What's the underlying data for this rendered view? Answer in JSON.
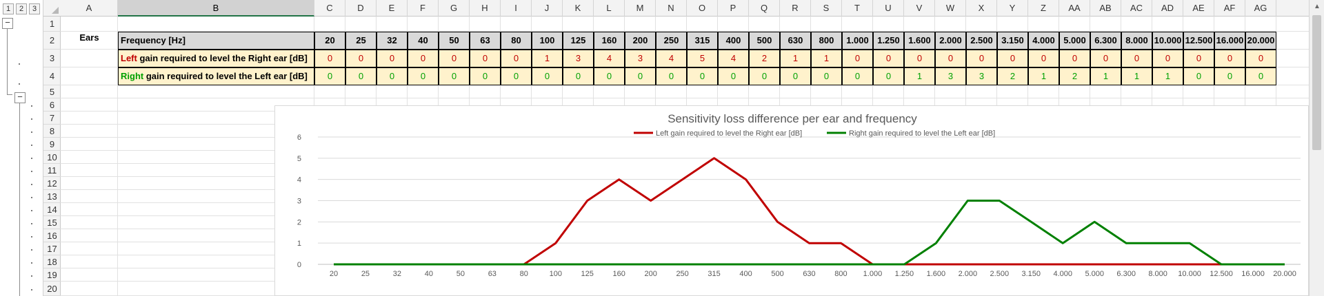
{
  "sheet": {
    "outline_levels": [
      "1",
      "2",
      "3"
    ],
    "collapse_symbol": "−",
    "column_letters": [
      "A",
      "B",
      "C",
      "D",
      "E",
      "F",
      "G",
      "H",
      "I",
      "J",
      "K",
      "L",
      "M",
      "N",
      "O",
      "P",
      "Q",
      "R",
      "S",
      "T",
      "U",
      "V",
      "W",
      "X",
      "Y",
      "Z",
      "AA",
      "AB",
      "AC",
      "AD",
      "AE",
      "AF",
      "AG"
    ],
    "selected_column": "B",
    "row_numbers": [
      "1",
      "2",
      "3",
      "4",
      "5",
      "6",
      "7",
      "8",
      "9",
      "10",
      "11",
      "12",
      "13",
      "14",
      "15",
      "16",
      "17",
      "18",
      "19",
      "20"
    ]
  },
  "table": {
    "group_label": "Ears",
    "header_label": "Frequency [Hz]",
    "frequencies": [
      "20",
      "25",
      "32",
      "40",
      "50",
      "63",
      "80",
      "100",
      "125",
      "160",
      "200",
      "250",
      "315",
      "400",
      "500",
      "630",
      "800",
      "1.000",
      "1.250",
      "1.600",
      "2.000",
      "2.500",
      "3.150",
      "4.000",
      "5.000",
      "6.300",
      "8.000",
      "10.000",
      "12.500",
      "16.000",
      "20.000"
    ],
    "left_row": {
      "prefix": "Left",
      "rest": " gain required to level the Right ear [dB]",
      "values": [
        0,
        0,
        0,
        0,
        0,
        0,
        0,
        1,
        3,
        4,
        3,
        4,
        5,
        4,
        2,
        1,
        1,
        0,
        0,
        0,
        0,
        0,
        0,
        0,
        0,
        0,
        0,
        0,
        0,
        0,
        0
      ]
    },
    "right_row": {
      "prefix": "Right",
      "rest": " gain required to level the Left ear [dB]",
      "values": [
        0,
        0,
        0,
        0,
        0,
        0,
        0,
        0,
        0,
        0,
        0,
        0,
        0,
        0,
        0,
        0,
        0,
        0,
        0,
        1,
        3,
        3,
        2,
        1,
        2,
        1,
        1,
        1,
        0,
        0,
        0
      ]
    }
  },
  "chart_data": {
    "type": "line",
    "title": "Sensitivity loss difference per ear and frequency",
    "categories": [
      "20",
      "25",
      "32",
      "40",
      "50",
      "63",
      "80",
      "100",
      "125",
      "160",
      "200",
      "250",
      "315",
      "400",
      "500",
      "630",
      "800",
      "1.000",
      "1.250",
      "1.600",
      "2.000",
      "2.500",
      "3.150",
      "4.000",
      "5.000",
      "6.300",
      "8.000",
      "10.000",
      "12.500",
      "16.000",
      "20.000"
    ],
    "ylim": [
      0,
      6
    ],
    "yticks": [
      "0",
      "1",
      "2",
      "3",
      "4",
      "5",
      "6"
    ],
    "grid": "horizontal",
    "legend_position": "top",
    "series": [
      {
        "name": "Left gain required to level the Right ear [dB]",
        "color": "#c00000",
        "values": [
          0,
          0,
          0,
          0,
          0,
          0,
          0,
          1,
          3,
          4,
          3,
          4,
          5,
          4,
          2,
          1,
          1,
          0,
          0,
          0,
          0,
          0,
          0,
          0,
          0,
          0,
          0,
          0,
          0,
          0,
          0
        ]
      },
      {
        "name": "Right gain required to level the Left ear [dB]",
        "color": "#008000",
        "values": [
          0,
          0,
          0,
          0,
          0,
          0,
          0,
          0,
          0,
          0,
          0,
          0,
          0,
          0,
          0,
          0,
          0,
          0,
          0,
          1,
          3,
          3,
          2,
          1,
          2,
          1,
          1,
          1,
          0,
          0,
          0
        ]
      }
    ]
  }
}
